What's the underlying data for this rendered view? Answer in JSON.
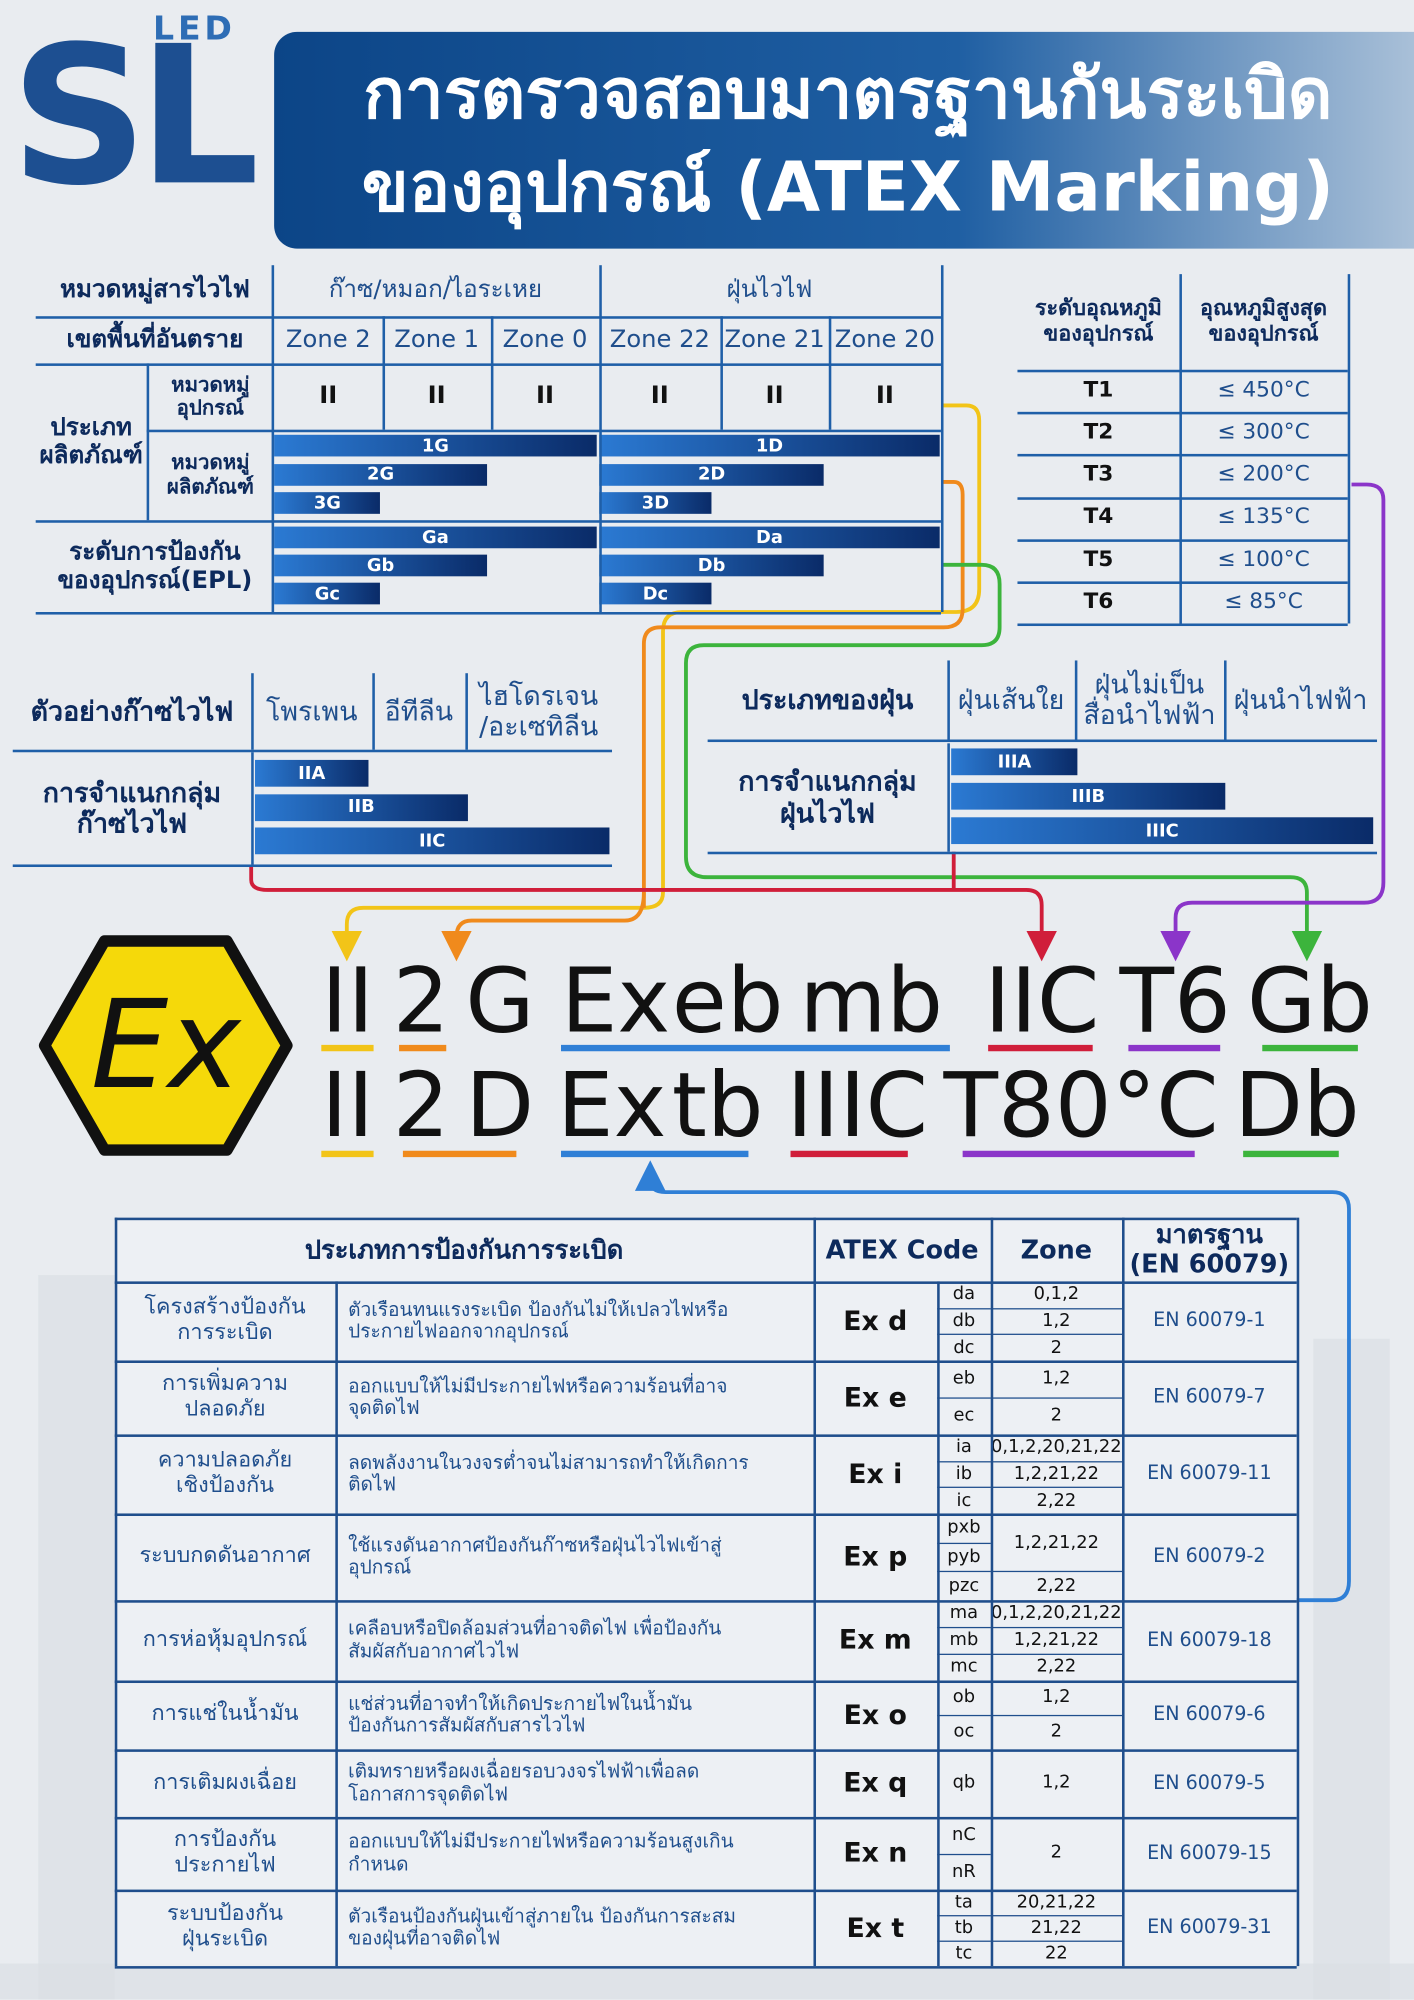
{
  "header": {
    "logo": {
      "mark": "SL",
      "sub": "LED"
    },
    "title": [
      "การตรวจสอบมาตรฐานกันระเบิด",
      "ของอุปกรณ์ (ATEX Marking)"
    ]
  },
  "zone_table": {
    "row_labels": {
      "substance": "หมวดหมู่สารไวไฟ",
      "zone": "เขตพื้นที่อันตราย",
      "product_type": "ประเภท\nผลิตภัณฑ์",
      "equipment_group": "หมวดหมู่\nอุปกรณ์",
      "product_category": "หมวดหมู่\nผลิตภัณฑ์",
      "epl": "ระดับการป้องกัน\nของอุปกรณ์(EPL)"
    },
    "substances": [
      "ก๊าซ/หมอก/ไอระเหย",
      "ฝุ่นไวไฟ"
    ],
    "zones": [
      "Zone 2",
      "Zone 1",
      "Zone 0",
      "Zone 22",
      "Zone 21",
      "Zone 20"
    ],
    "groups": [
      "II",
      "II",
      "II",
      "II",
      "II",
      "II"
    ],
    "categories": [
      [
        "1G",
        "2G",
        "3G"
      ],
      [
        "1D",
        "2D",
        "3D"
      ]
    ],
    "epl": [
      [
        "Ga",
        "Gb",
        "Gc"
      ],
      [
        "Da",
        "Db",
        "Dc"
      ]
    ]
  },
  "temperature_table": {
    "headers": [
      "ระดับอุณหภูมิ\nของอุปกรณ์",
      "อุณหภูมิสูงสุด\nของอุปกรณ์"
    ],
    "rows": [
      [
        "T1",
        "≤ 450°C"
      ],
      [
        "T2",
        "≤ 300°C"
      ],
      [
        "T3",
        "≤ 200°C"
      ],
      [
        "T4",
        "≤ 135°C"
      ],
      [
        "T5",
        "≤ 100°C"
      ],
      [
        "T6",
        "≤ 85°C"
      ]
    ]
  },
  "gas_table": {
    "headers": [
      "ตัวอย่างก๊าซไวไฟ",
      "โพรเพน",
      "อีทีลีน",
      "ไฮโดรเจน\n/อะเซทิลีน"
    ],
    "label": "การจำแนกกลุ่ม\nก๊าซไวไฟ",
    "groups": [
      "IIA",
      "IIB",
      "IIC"
    ]
  },
  "dust_table": {
    "headers": [
      "ประเภทของฝุ่น",
      "ฝุ่นเส้นใย",
      "ฝุ่นไม่เป็น\nสื่อนำไฟฟ้า",
      "ฝุ่นนำไฟฟ้า"
    ],
    "label": "การจำแนกกลุ่ม\nฝุ่นไวไฟ",
    "groups": [
      "IIIA",
      "IIIB",
      "IIIC"
    ]
  },
  "ex_symbol": "Ex",
  "marking": [
    [
      "II",
      "2",
      "G",
      "Ex",
      "eb",
      "mb",
      "IIC",
      "T6",
      "Gb"
    ],
    [
      "II",
      "2",
      "D",
      "Ex",
      "tb",
      "IIIC",
      "T80°C",
      "Db"
    ]
  ],
  "protection_table": {
    "headers": [
      "ประเภทการป้องกันการระเบิด",
      "ATEX Code",
      "Zone",
      "มาตรฐาน\n(EN 60079)"
    ],
    "rows": [
      {
        "type": "โครงสร้างป้องกัน\nการระเบิด",
        "description": "ตัวเรือนทนแรงระเบิด ป้องกันไม่ให้เปลวไฟหรือ\nประกายไฟออกจากอุปกรณ์",
        "code": "Ex d",
        "levels": [
          "da",
          "db",
          "dc"
        ],
        "zones": [
          "0,1,2",
          "1,2",
          "2"
        ],
        "standard": "EN 60079-1"
      },
      {
        "type": "การเพิ่มความ\nปลอดภัย",
        "description": "ออกแบบให้ไม่มีประกายไฟหรือความร้อนที่อาจ\nจุดติดไฟ",
        "code": "Ex e",
        "levels": [
          "eb",
          "ec"
        ],
        "zones": [
          "1,2",
          "2"
        ],
        "standard": "EN 60079-7"
      },
      {
        "type": "ความปลอดภัย\nเชิงป้องกัน",
        "description": "ลดพลังงานในวงจรต่ำจนไม่สามารถทำให้เกิดการ\nติดไฟ",
        "code": "Ex i",
        "levels": [
          "ia",
          "ib",
          "ic"
        ],
        "zones": [
          "0,1,2,20,21,22",
          "1,2,21,22",
          "2,22"
        ],
        "standard": "EN 60079-11"
      },
      {
        "type": "ระบบกดดันอากาศ",
        "description": "ใช้แรงดันอากาศป้องกันก๊าซหรือฝุ่นไวไฟเข้าสู่\nอุปกรณ์",
        "code": "Ex p",
        "levels": [
          "pxb",
          "pyb",
          "pzc"
        ],
        "zones": [
          "1,2,21,22",
          null,
          "2,22"
        ],
        "standard": "EN 60079-2"
      },
      {
        "type": "การห่อหุ้มอุปกรณ์",
        "description": "เคลือบหรือปิดล้อมส่วนที่อาจติดไฟ เพื่อป้องกัน\nสัมผัสกับอากาศไวไฟ",
        "code": "Ex m",
        "levels": [
          "ma",
          "mb",
          "mc"
        ],
        "zones": [
          "0,1,2,20,21,22",
          "1,2,21,22",
          "2,22"
        ],
        "standard": "EN 60079-18"
      },
      {
        "type": "การแช่ในน้ำมัน",
        "description": "แช่ส่วนที่อาจทำให้เกิดประกายไฟในน้ำมัน\nป้องกันการสัมผัสกับสารไวไฟ",
        "code": "Ex o",
        "levels": [
          "ob",
          "oc"
        ],
        "zones": [
          "1,2",
          "2"
        ],
        "standard": "EN 60079-6"
      },
      {
        "type": "การเติมผงเฉื่อย",
        "description": "เติมทรายหรือผงเฉื่อยรอบวงจรไฟฟ้าเพื่อลด\nโอกาสการจุดติดไฟ",
        "code": "Ex q",
        "levels": [
          "qb"
        ],
        "zones": [
          "1,2"
        ],
        "standard": "EN 60079-5"
      },
      {
        "type": "การป้องกัน\nประกายไฟ",
        "description": "ออกแบบให้ไม่มีประกายไฟหรือความร้อนสูงเกิน\nกำหนด",
        "code": "Ex n",
        "levels": [
          "nC",
          "nR"
        ],
        "zones": [
          "2",
          null
        ],
        "standard": "EN 60079-15"
      },
      {
        "type": "ระบบป้องกัน\nฝุ่นระเบิด",
        "description": "ตัวเรือนป้องกันฝุ่นเข้าสู่ภายใน ป้องกันการสะสม\nของฝุ่นที่อาจติดไฟ",
        "code": "Ex t",
        "levels": [
          "ta",
          "tb",
          "tc"
        ],
        "zones": [
          "20,21,22",
          "21,22",
          "22"
        ],
        "standard": "EN 60079-31"
      }
    ]
  }
}
